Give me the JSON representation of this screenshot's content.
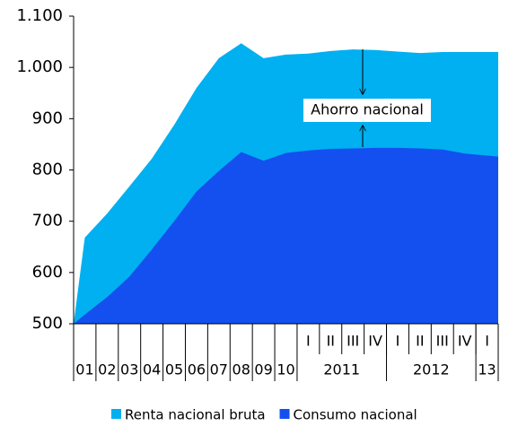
{
  "chart_data": {
    "type": "area",
    "categories": [
      "01",
      "02",
      "03",
      "04",
      "05",
      "06",
      "07",
      "08",
      "09",
      "10",
      "I",
      "II",
      "III",
      "IV",
      "I",
      "II",
      "III",
      "IV",
      "I"
    ],
    "x_groups": [
      {
        "label": "2011",
        "span": 4
      },
      {
        "label": "2012",
        "span": 4
      },
      {
        "label": "13",
        "span": 1
      }
    ],
    "series": [
      {
        "name": "Renta nacional bruta",
        "color": "#00b0f0",
        "values": [
          668,
          715,
          768,
          822,
          888,
          960,
          1018,
          1047,
          1018,
          1025,
          1027,
          1032,
          1035,
          1034,
          1031,
          1028,
          1030,
          1030,
          1030
        ]
      },
      {
        "name": "Consumo nacional",
        "color": "#1450f0",
        "values": [
          518,
          552,
          592,
          645,
          700,
          758,
          798,
          835,
          818,
          833,
          838,
          841,
          842,
          843,
          843,
          842,
          840,
          832,
          826
        ]
      }
    ],
    "ylim": [
      500,
      1100
    ],
    "yticks": [
      500,
      600,
      700,
      800,
      900,
      {
        "value": 1000,
        "label": "1.000"
      },
      {
        "value": 1100,
        "label": "1.100"
      }
    ],
    "annotation": "Ahorro nacional",
    "legend": "bottom"
  }
}
